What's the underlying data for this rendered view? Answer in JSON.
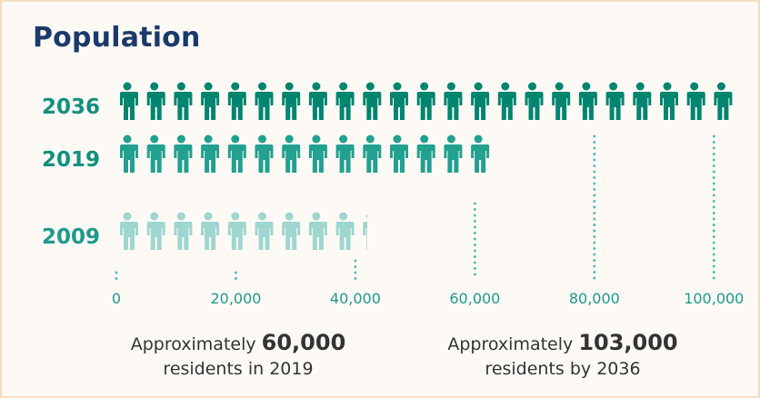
{
  "title": "Population",
  "colors": {
    "y2036": "#00856f",
    "y2019": "#22a090",
    "y2009": "#9fd6cf",
    "dots": "#5cbcb0",
    "title": "#1a3a6b",
    "border": "#f7dcc0"
  },
  "chart_data": {
    "type": "bar",
    "title": "Population",
    "unit_per_icon": 3750,
    "categories": [
      "2036",
      "2019",
      "2009"
    ],
    "values": [
      103000,
      60000,
      42000
    ],
    "xlim": [
      0,
      103000
    ],
    "xticks": [
      0,
      20000,
      40000,
      60000,
      80000,
      100000
    ],
    "xtick_labels": [
      "0",
      "20,000",
      "40,000",
      "60,000",
      "80,000",
      "100,000"
    ]
  },
  "captions": [
    {
      "prefix": "Approximately ",
      "value": "60,000",
      "suffix": "residents in 2019"
    },
    {
      "prefix": "Approximately ",
      "value": "103,000",
      "suffix": "residents by 2036"
    }
  ]
}
